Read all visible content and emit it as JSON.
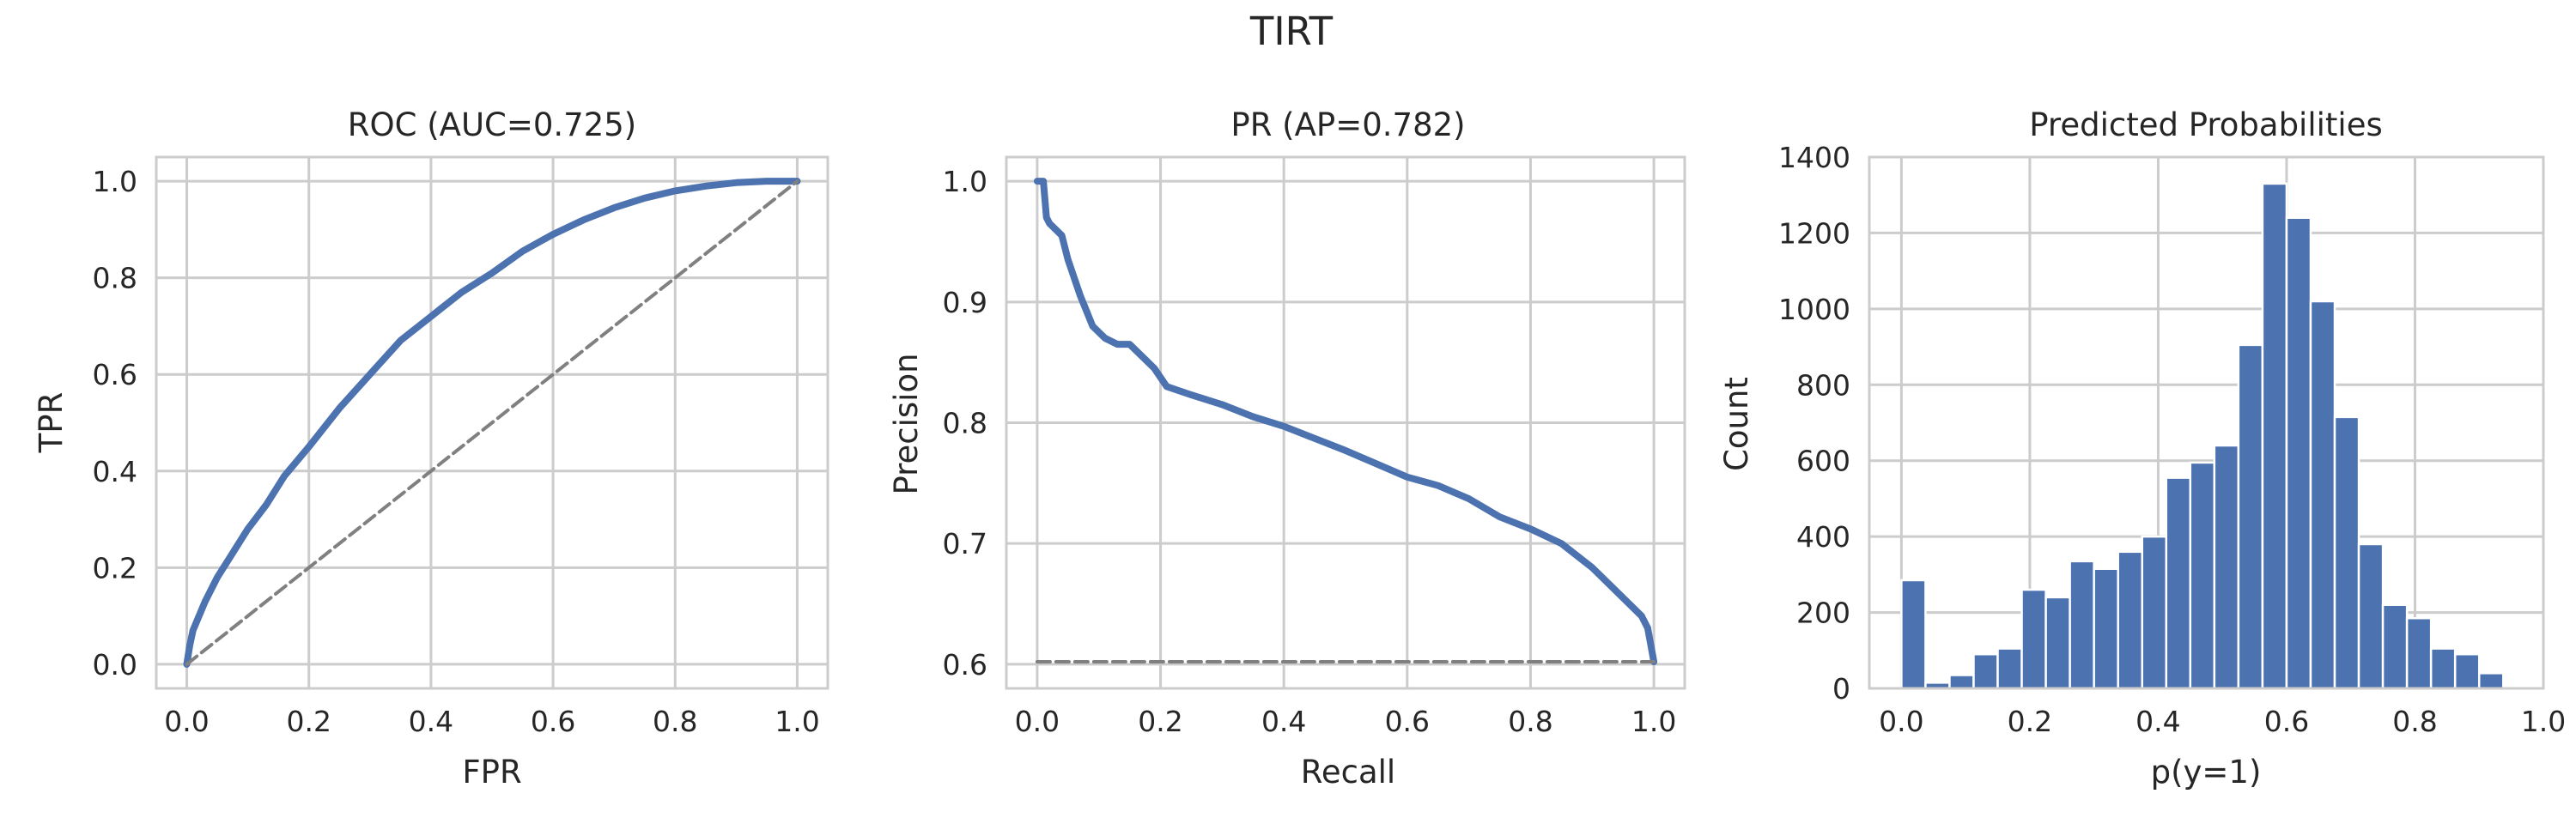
{
  "figure_title": "TIRT",
  "colors": {
    "series": "#4c72b0",
    "reference": "#808080",
    "grid": "#cccccc",
    "frame": "#cccccc",
    "text": "#262626"
  },
  "chart_data": [
    {
      "type": "line",
      "title": "ROC (AUC=0.725)",
      "xlabel": "FPR",
      "ylabel": "TPR",
      "xlim": [
        -0.05,
        1.05
      ],
      "ylim": [
        -0.05,
        1.05
      ],
      "xticks": [
        0.0,
        0.2,
        0.4,
        0.6,
        0.8,
        1.0
      ],
      "yticks": [
        0.0,
        0.2,
        0.4,
        0.6,
        0.8,
        1.0
      ],
      "xtick_labels": [
        "0.0",
        "0.2",
        "0.4",
        "0.6",
        "0.8",
        "1.0"
      ],
      "ytick_labels": [
        "0.0",
        "0.2",
        "0.4",
        "0.6",
        "0.8",
        "1.0"
      ],
      "grid": true,
      "series": [
        {
          "style": "solid",
          "x": [
            0.0,
            0.005,
            0.01,
            0.02,
            0.03,
            0.05,
            0.07,
            0.1,
            0.13,
            0.16,
            0.2,
            0.25,
            0.3,
            0.35,
            0.4,
            0.45,
            0.5,
            0.55,
            0.6,
            0.65,
            0.7,
            0.75,
            0.8,
            0.85,
            0.9,
            0.95,
            1.0
          ],
          "y": [
            0.0,
            0.04,
            0.07,
            0.1,
            0.13,
            0.18,
            0.22,
            0.28,
            0.33,
            0.39,
            0.45,
            0.53,
            0.6,
            0.67,
            0.72,
            0.77,
            0.81,
            0.855,
            0.89,
            0.92,
            0.945,
            0.965,
            0.98,
            0.99,
            0.997,
            1.0,
            1.0
          ]
        },
        {
          "style": "dashed",
          "x": [
            0.0,
            1.0
          ],
          "y": [
            0.0,
            1.0
          ]
        }
      ]
    },
    {
      "type": "line",
      "title": "PR (AP=0.782)",
      "xlabel": "Recall",
      "ylabel": "Precision",
      "xlim": [
        -0.05,
        1.05
      ],
      "ylim": [
        0.58,
        1.02
      ],
      "xticks": [
        0.0,
        0.2,
        0.4,
        0.6,
        0.8,
        1.0
      ],
      "yticks": [
        0.6,
        0.7,
        0.8,
        0.9,
        1.0
      ],
      "xtick_labels": [
        "0.0",
        "0.2",
        "0.4",
        "0.6",
        "0.8",
        "1.0"
      ],
      "ytick_labels": [
        "0.6",
        "0.7",
        "0.8",
        "0.9",
        "1.0"
      ],
      "grid": true,
      "series": [
        {
          "style": "solid",
          "x": [
            0.0,
            0.005,
            0.01,
            0.015,
            0.02,
            0.03,
            0.04,
            0.05,
            0.07,
            0.09,
            0.11,
            0.13,
            0.15,
            0.17,
            0.19,
            0.21,
            0.25,
            0.3,
            0.35,
            0.4,
            0.45,
            0.5,
            0.55,
            0.6,
            0.65,
            0.7,
            0.75,
            0.8,
            0.85,
            0.9,
            0.95,
            0.98,
            0.99,
            1.0
          ],
          "y": [
            1.0,
            1.0,
            1.0,
            0.97,
            0.965,
            0.96,
            0.955,
            0.935,
            0.905,
            0.88,
            0.87,
            0.865,
            0.865,
            0.855,
            0.845,
            0.83,
            0.823,
            0.815,
            0.805,
            0.797,
            0.787,
            0.777,
            0.766,
            0.755,
            0.748,
            0.737,
            0.722,
            0.712,
            0.7,
            0.68,
            0.655,
            0.64,
            0.63,
            0.602
          ]
        },
        {
          "style": "dashed",
          "x": [
            0.0,
            1.0
          ],
          "y": [
            0.602,
            0.602
          ]
        }
      ]
    },
    {
      "type": "bar",
      "title": "Predicted Probabilities",
      "xlabel": "p(y=1)",
      "ylabel": "Count",
      "xlim": [
        -0.05,
        1.0
      ],
      "ylim": [
        0,
        1400
      ],
      "xticks": [
        0.0,
        0.2,
        0.4,
        0.6,
        0.8,
        1.0
      ],
      "yticks": [
        0,
        200,
        400,
        600,
        800,
        1000,
        1200,
        1400
      ],
      "xtick_labels": [
        "0.0",
        "0.2",
        "0.4",
        "0.6",
        "0.8",
        "1.0"
      ],
      "ytick_labels": [
        "0",
        "200",
        "400",
        "600",
        "800",
        "1000",
        "1200",
        "1400"
      ],
      "grid": true,
      "bin_edges": [
        0.0,
        0.0375,
        0.075,
        0.1125,
        0.15,
        0.1875,
        0.225,
        0.2625,
        0.3,
        0.3375,
        0.375,
        0.4125,
        0.45,
        0.4875,
        0.525,
        0.5625,
        0.6,
        0.6375,
        0.675,
        0.7125,
        0.75,
        0.7875,
        0.825,
        0.8625,
        0.9,
        0.9375,
        0.975
      ],
      "values": [
        285,
        15,
        35,
        90,
        105,
        260,
        240,
        335,
        315,
        360,
        400,
        555,
        595,
        640,
        905,
        1330,
        1240,
        1020,
        715,
        380,
        220,
        185,
        105,
        90,
        40,
        0
      ]
    }
  ]
}
